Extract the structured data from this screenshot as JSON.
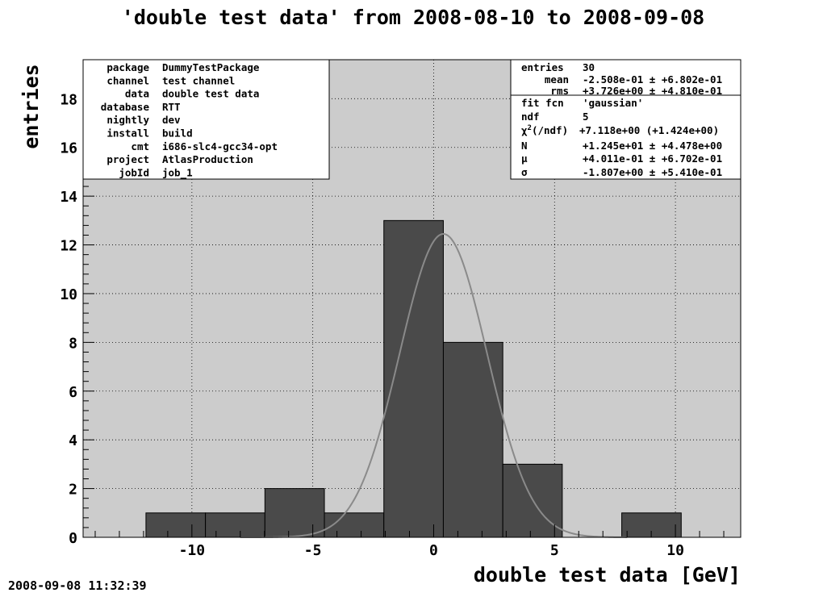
{
  "chart_data": {
    "type": "bar",
    "title": "'double test data' from 2008-08-10 to 2008-09-08",
    "xlabel": "double test data [GeV]",
    "ylabel": "entries",
    "xlim": [
      -14.5,
      12.7
    ],
    "ylim": [
      0,
      19.6
    ],
    "grid": true,
    "x_ticks": [
      -10,
      -5,
      0,
      5,
      10
    ],
    "y_ticks": [
      0,
      2,
      4,
      6,
      8,
      10,
      12,
      14,
      16,
      18
    ],
    "bin_width": 2.46,
    "bins": [
      {
        "x_low": -11.9,
        "x_high": -9.44,
        "count": 1
      },
      {
        "x_low": -9.44,
        "x_high": -6.98,
        "count": 1
      },
      {
        "x_low": -6.98,
        "x_high": -4.52,
        "count": 2
      },
      {
        "x_low": -4.52,
        "x_high": -2.06,
        "count": 1
      },
      {
        "x_low": -2.06,
        "x_high": 0.4,
        "count": 13
      },
      {
        "x_low": 0.4,
        "x_high": 2.86,
        "count": 8
      },
      {
        "x_low": 2.86,
        "x_high": 5.32,
        "count": 3
      },
      {
        "x_low": 5.32,
        "x_high": 7.78,
        "count": 0
      },
      {
        "x_low": 7.78,
        "x_high": 10.24,
        "count": 1
      }
    ],
    "fit": {
      "function": "gaussian",
      "N": 12.45,
      "mu": 0.4011,
      "sigma": 1.807
    },
    "bar_color": "#4a4a4a",
    "plot_background": "#cccccc",
    "fit_color": "#8a8a8a"
  },
  "info_box": {
    "rows": [
      {
        "key": "package",
        "value": "DummyTestPackage"
      },
      {
        "key": "channel",
        "value": "test channel"
      },
      {
        "key": "data",
        "value": "double test data"
      },
      {
        "key": "database",
        "value": "RTT"
      },
      {
        "key": "nightly",
        "value": "dev"
      },
      {
        "key": "install",
        "value": "build"
      },
      {
        "key": "cmt",
        "value": "i686-slc4-gcc34-opt"
      },
      {
        "key": "project",
        "value": "AtlasProduction"
      },
      {
        "key": "jobId",
        "value": "job_1"
      }
    ]
  },
  "stats_box": {
    "entries_key": "entries",
    "entries_value": "30",
    "mean_key": "mean",
    "mean_value": "-2.508e-01 ± +6.802e-01",
    "rms_key": "rms",
    "rms_value": "+3.726e+00 ± +4.810e-01"
  },
  "fit_box": {
    "fcn_key": "fit fcn",
    "fcn_value": "'gaussian'",
    "ndf_key": "ndf",
    "ndf_value": "5",
    "chi2_key_main": "χ",
    "chi2_key_sup": "2",
    "chi2_key_rest": "(/ndf)",
    "chi2_value": "+7.118e+00 (+1.424e+00)",
    "n_key": "N",
    "n_value": "+1.245e+01 ± +4.478e+00",
    "mu_key": "μ",
    "mu_value": "+4.011e-01 ± +6.702e-01",
    "sigma_key": "σ",
    "sigma_value": "-1.807e+00 ± +5.410e-01"
  },
  "timestamp": "2008-09-08 11:32:39"
}
